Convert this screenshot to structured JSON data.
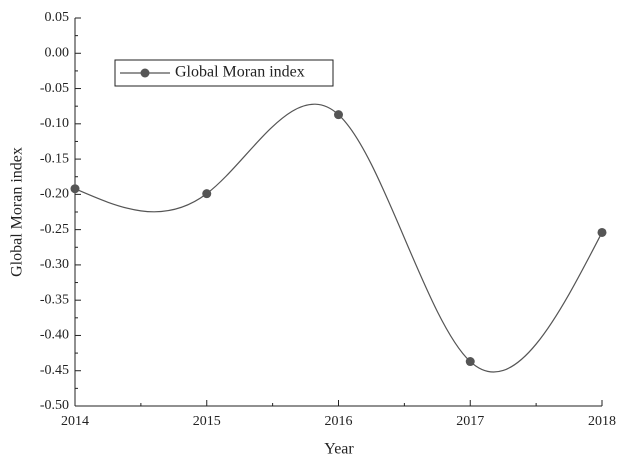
{
  "chart_data": {
    "type": "line",
    "smooth": true,
    "xlabel": "Year",
    "ylabel": "Global Moran index",
    "x": [
      2014,
      2015,
      2016,
      2017,
      2018
    ],
    "series": [
      {
        "name": "Global Moran index",
        "color": "#555555",
        "values": [
          -0.192,
          -0.199,
          -0.087,
          -0.437,
          -0.254
        ]
      }
    ],
    "xlim": [
      2014,
      2018
    ],
    "xticks": [
      2014,
      2015,
      2016,
      2017,
      2018
    ],
    "ylim": [
      -0.5,
      0.05
    ],
    "yticks": [
      0.05,
      {
        "value": 0,
        "label": "0.00"
      },
      -0.05,
      {
        "value": -0.1,
        "label": "-0.10"
      },
      -0.15,
      {
        "value": -0.2,
        "label": "-0.20"
      },
      -0.25,
      {
        "value": -0.3,
        "label": "-0.30"
      },
      -0.35,
      {
        "value": -0.4,
        "label": "-0.40"
      },
      -0.45,
      {
        "value": -0.5,
        "label": "-0.50"
      }
    ],
    "legend": "upper left"
  }
}
